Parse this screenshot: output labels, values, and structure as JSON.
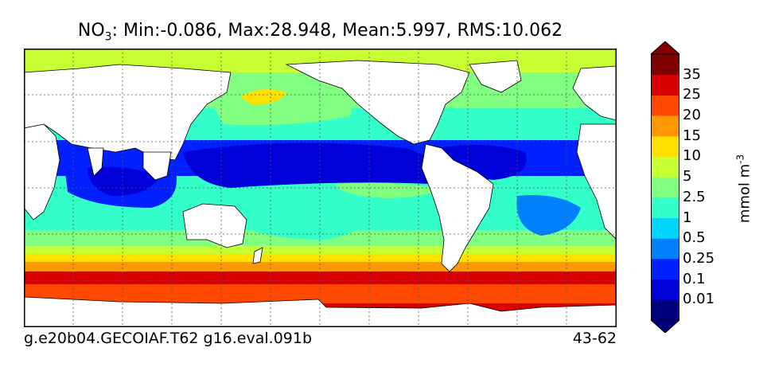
{
  "title": {
    "species_main": "NO",
    "species_sub": "3",
    "stats": ": Min:-0.086, Max:28.948, Mean:5.997, RMS:10.062"
  },
  "footer": {
    "left": "g.e20b04.GECOIAF.T62 g16.eval.091b",
    "right": "43-62"
  },
  "colorbar": {
    "units_main": "mmol m",
    "units_sup": "-3",
    "levels": [
      "0.01",
      "0.1",
      "0.25",
      "0.5",
      "1",
      "2.5",
      "5",
      "10",
      "15",
      "20",
      "25",
      "35"
    ],
    "colors": [
      "#00007f",
      "#0000d8",
      "#0020ff",
      "#0080ff",
      "#00d4ff",
      "#33ffc8",
      "#80ff80",
      "#c8ff33",
      "#ffe000",
      "#ff9800",
      "#ff4800",
      "#d80000",
      "#7f0000"
    ],
    "extend": "both"
  },
  "map": {
    "projection": "equirectangular",
    "gridlines": "dotted",
    "land_color": "#ffffff"
  }
}
